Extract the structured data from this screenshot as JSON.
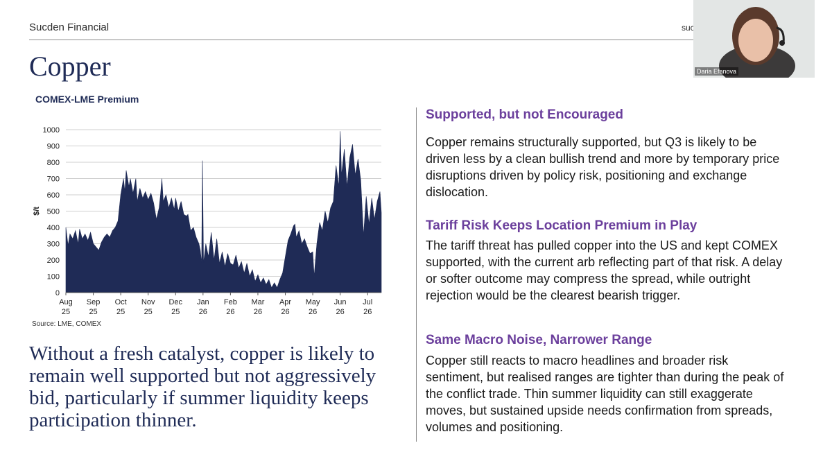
{
  "header": {
    "brand": "Sucden Financial",
    "brand_right_partial": "suc"
  },
  "page": {
    "title": "Copper",
    "summary": "Without a fresh catalyst, copper is likely to remain well supported but not aggressively bid, particularly if summer liquidity keeps participation thinner."
  },
  "webcam": {
    "presenter_name": "Daria Efanova"
  },
  "sections": [
    {
      "heading": "Supported, but not Encouraged",
      "body": "Copper remains structurally supported, but Q3 is likely to be driven less by a clean bullish trend and more by temporary price disruptions driven by policy risk, positioning and exchange dislocation."
    },
    {
      "heading": "Tariff Risk Keeps Location Premium in Play",
      "body": "The tariff threat has pulled copper into the US and kept COMEX supported, with the current arb reflecting part of that risk. A delay or softer outcome may compress the spread, while outright rejection would be the clearest bearish trigger."
    },
    {
      "heading": "Same Macro Noise, Narrower Range",
      "body": "Copper still reacts to macro headlines and broader risk sentiment, but realised ranges are tighter than during the peak of the conflict trade. Thin summer liquidity can still exaggerate moves, but sustained upside needs confirmation from spreads, volumes and positioning."
    }
  ],
  "chart_data": {
    "type": "area",
    "title": "COMEX-LME Premium",
    "ylabel": "$/t",
    "xlabel": "",
    "source": "Source: LME, COMEX",
    "ylim": [
      0,
      1000
    ],
    "yticks": [
      0,
      100,
      200,
      300,
      400,
      500,
      600,
      700,
      800,
      900,
      1000
    ],
    "xlim": [
      0,
      11.5
    ],
    "xticks": [
      {
        "month": "Aug",
        "year": "25",
        "x": 0
      },
      {
        "month": "Sep",
        "year": "25",
        "x": 1
      },
      {
        "month": "Oct",
        "year": "25",
        "x": 2
      },
      {
        "month": "Nov",
        "year": "25",
        "x": 3
      },
      {
        "month": "Dec",
        "year": "25",
        "x": 4
      },
      {
        "month": "Jan",
        "year": "26",
        "x": 5
      },
      {
        "month": "Feb",
        "year": "26",
        "x": 6
      },
      {
        "month": "Mar",
        "year": "26",
        "x": 7
      },
      {
        "month": "Apr",
        "year": "26",
        "x": 8
      },
      {
        "month": "May",
        "year": "26",
        "x": 9
      },
      {
        "month": "Jun",
        "year": "26",
        "x": 10
      },
      {
        "month": "Jul",
        "year": "26",
        "x": 11
      }
    ],
    "grid": true,
    "color": "#1f2b56",
    "series": [
      {
        "points": [
          [
            0.0,
            400
          ],
          [
            0.08,
            290
          ],
          [
            0.15,
            360
          ],
          [
            0.25,
            330
          ],
          [
            0.35,
            380
          ],
          [
            0.45,
            300
          ],
          [
            0.5,
            390
          ],
          [
            0.6,
            330
          ],
          [
            0.7,
            360
          ],
          [
            0.8,
            320
          ],
          [
            0.9,
            370
          ],
          [
            1.0,
            300
          ],
          [
            1.1,
            280
          ],
          [
            1.2,
            260
          ],
          [
            1.3,
            310
          ],
          [
            1.4,
            340
          ],
          [
            1.5,
            360
          ],
          [
            1.6,
            340
          ],
          [
            1.7,
            380
          ],
          [
            1.8,
            400
          ],
          [
            1.9,
            440
          ],
          [
            2.0,
            600
          ],
          [
            2.1,
            700
          ],
          [
            2.15,
            620
          ],
          [
            2.2,
            750
          ],
          [
            2.3,
            650
          ],
          [
            2.35,
            700
          ],
          [
            2.45,
            610
          ],
          [
            2.55,
            700
          ],
          [
            2.6,
            560
          ],
          [
            2.7,
            640
          ],
          [
            2.8,
            580
          ],
          [
            2.9,
            620
          ],
          [
            3.0,
            570
          ],
          [
            3.1,
            610
          ],
          [
            3.2,
            550
          ],
          [
            3.3,
            450
          ],
          [
            3.4,
            520
          ],
          [
            3.45,
            600
          ],
          [
            3.5,
            700
          ],
          [
            3.55,
            560
          ],
          [
            3.65,
            600
          ],
          [
            3.75,
            520
          ],
          [
            3.85,
            580
          ],
          [
            3.95,
            510
          ],
          [
            4.0,
            580
          ],
          [
            4.1,
            500
          ],
          [
            4.2,
            560
          ],
          [
            4.3,
            480
          ],
          [
            4.4,
            470
          ],
          [
            4.45,
            480
          ],
          [
            4.55,
            380
          ],
          [
            4.65,
            400
          ],
          [
            4.75,
            340
          ],
          [
            4.85,
            300
          ],
          [
            4.9,
            260
          ],
          [
            4.95,
            180
          ],
          [
            4.98,
            810
          ],
          [
            5.02,
            180
          ],
          [
            5.1,
            300
          ],
          [
            5.2,
            220
          ],
          [
            5.3,
            370
          ],
          [
            5.4,
            200
          ],
          [
            5.5,
            330
          ],
          [
            5.6,
            180
          ],
          [
            5.7,
            250
          ],
          [
            5.8,
            160
          ],
          [
            5.9,
            240
          ],
          [
            6.0,
            180
          ],
          [
            6.1,
            170
          ],
          [
            6.2,
            230
          ],
          [
            6.3,
            150
          ],
          [
            6.4,
            190
          ],
          [
            6.5,
            120
          ],
          [
            6.6,
            180
          ],
          [
            6.7,
            100
          ],
          [
            6.8,
            140
          ],
          [
            6.9,
            70
          ],
          [
            7.0,
            110
          ],
          [
            7.1,
            60
          ],
          [
            7.2,
            90
          ],
          [
            7.3,
            50
          ],
          [
            7.4,
            80
          ],
          [
            7.5,
            30
          ],
          [
            7.6,
            60
          ],
          [
            7.7,
            30
          ],
          [
            7.8,
            80
          ],
          [
            7.9,
            120
          ],
          [
            8.0,
            220
          ],
          [
            8.1,
            320
          ],
          [
            8.2,
            360
          ],
          [
            8.3,
            410
          ],
          [
            8.35,
            420
          ],
          [
            8.4,
            340
          ],
          [
            8.5,
            380
          ],
          [
            8.6,
            300
          ],
          [
            8.7,
            330
          ],
          [
            8.8,
            280
          ],
          [
            8.9,
            240
          ],
          [
            9.0,
            250
          ],
          [
            9.05,
            100
          ],
          [
            9.15,
            300
          ],
          [
            9.25,
            430
          ],
          [
            9.35,
            380
          ],
          [
            9.45,
            500
          ],
          [
            9.55,
            430
          ],
          [
            9.65,
            520
          ],
          [
            9.75,
            560
          ],
          [
            9.85,
            780
          ],
          [
            9.95,
            650
          ],
          [
            10.0,
            990
          ],
          [
            10.05,
            720
          ],
          [
            10.15,
            880
          ],
          [
            10.25,
            650
          ],
          [
            10.35,
            830
          ],
          [
            10.45,
            910
          ],
          [
            10.55,
            720
          ],
          [
            10.65,
            820
          ],
          [
            10.75,
            690
          ],
          [
            10.85,
            350
          ],
          [
            10.95,
            590
          ],
          [
            11.05,
            420
          ],
          [
            11.15,
            580
          ],
          [
            11.25,
            450
          ],
          [
            11.35,
            560
          ],
          [
            11.45,
            620
          ],
          [
            11.5,
            490
          ]
        ]
      }
    ]
  }
}
